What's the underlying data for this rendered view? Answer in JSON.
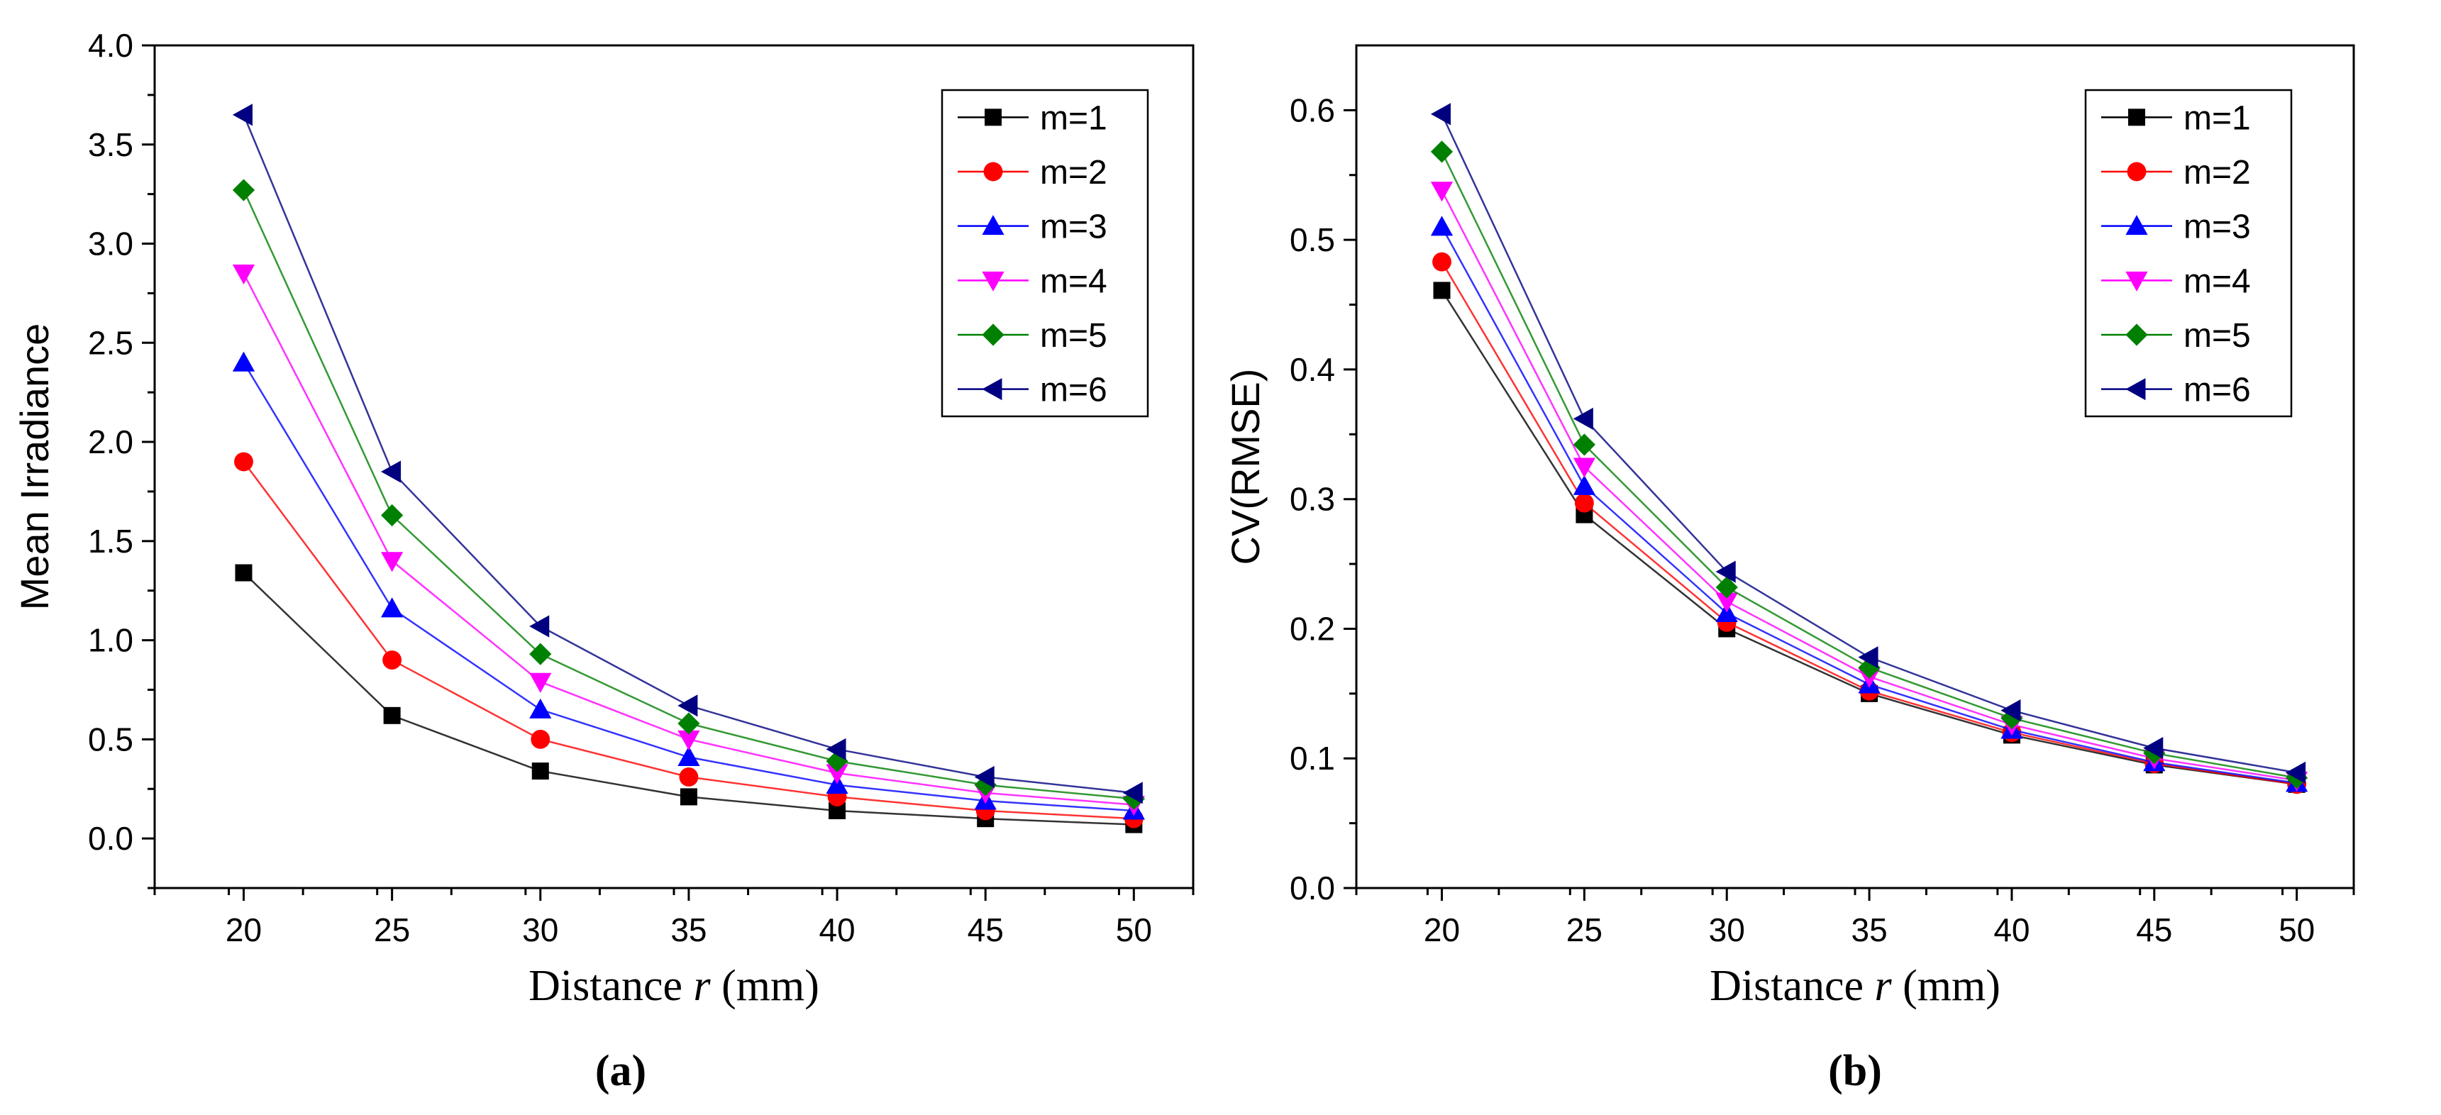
{
  "figure": {
    "panels": [
      {
        "label": "(a)"
      },
      {
        "label": "(b)"
      }
    ]
  },
  "chart_data": [
    {
      "type": "line",
      "panel": "(a)",
      "title": "",
      "xlabel_prefix": "Distance ",
      "xlabel_var": "r",
      "xlabel_suffix": " (mm)",
      "ylabel": "Mean Irradiance",
      "xlim": [
        17,
        52
      ],
      "ylim": [
        -0.25,
        4.0
      ],
      "xticks": [
        20,
        25,
        30,
        35,
        40,
        45,
        50
      ],
      "yticks": [
        0.0,
        0.5,
        1.0,
        1.5,
        2.0,
        2.5,
        3.0,
        3.5,
        4.0
      ],
      "ytick_labels": [
        "0.0",
        "0.5",
        "1.0",
        "1.5",
        "2.0",
        "2.5",
        "3.0",
        "3.5",
        "4.0"
      ],
      "legend_position": "top-right",
      "x": [
        20,
        25,
        30,
        35,
        40,
        45,
        50
      ],
      "series": [
        {
          "name": "m=1",
          "color": "#000000",
          "marker": "square",
          "values": [
            1.34,
            0.62,
            0.34,
            0.21,
            0.14,
            0.1,
            0.07
          ]
        },
        {
          "name": "m=2",
          "color": "#ff0000",
          "marker": "circle",
          "values": [
            1.9,
            0.9,
            0.5,
            0.31,
            0.21,
            0.14,
            0.1
          ]
        },
        {
          "name": "m=3",
          "color": "#0000ff",
          "marker": "triangle-up",
          "values": [
            2.4,
            1.16,
            0.65,
            0.41,
            0.27,
            0.19,
            0.14
          ]
        },
        {
          "name": "m=4",
          "color": "#ff00ff",
          "marker": "triangle-down",
          "values": [
            2.85,
            1.4,
            0.79,
            0.5,
            0.33,
            0.23,
            0.17
          ]
        },
        {
          "name": "m=5",
          "color": "#008000",
          "marker": "diamond",
          "values": [
            3.27,
            1.63,
            0.93,
            0.58,
            0.39,
            0.27,
            0.2
          ]
        },
        {
          "name": "m=6",
          "color": "#000080",
          "marker": "triangle-left",
          "values": [
            3.65,
            1.85,
            1.07,
            0.67,
            0.45,
            0.31,
            0.23
          ]
        }
      ]
    },
    {
      "type": "line",
      "panel": "(b)",
      "title": "",
      "xlabel_prefix": "Distance ",
      "xlabel_var": "r",
      "xlabel_suffix": " (mm)",
      "ylabel": "CV(RMSE)",
      "xlim": [
        17,
        52
      ],
      "ylim": [
        0.0,
        0.65
      ],
      "xticks": [
        20,
        25,
        30,
        35,
        40,
        45,
        50
      ],
      "yticks": [
        0.0,
        0.1,
        0.2,
        0.3,
        0.4,
        0.5,
        0.6
      ],
      "ytick_labels": [
        "0.0",
        "0.1",
        "0.2",
        "0.3",
        "0.4",
        "0.5",
        "0.6"
      ],
      "legend_position": "top-right",
      "x": [
        20,
        25,
        30,
        35,
        40,
        45,
        50
      ],
      "series": [
        {
          "name": "m=1",
          "color": "#000000",
          "marker": "square",
          "values": [
            0.461,
            0.288,
            0.2,
            0.15,
            0.118,
            0.095,
            0.08
          ]
        },
        {
          "name": "m=2",
          "color": "#ff0000",
          "marker": "circle",
          "values": [
            0.483,
            0.297,
            0.205,
            0.152,
            0.12,
            0.096,
            0.08
          ]
        },
        {
          "name": "m=3",
          "color": "#0000ff",
          "marker": "triangle-up",
          "values": [
            0.51,
            0.31,
            0.212,
            0.157,
            0.122,
            0.097,
            0.081
          ]
        },
        {
          "name": "m=4",
          "color": "#ff00ff",
          "marker": "triangle-down",
          "values": [
            0.538,
            0.325,
            0.221,
            0.163,
            0.126,
            0.1,
            0.083
          ]
        },
        {
          "name": "m=5",
          "color": "#008000",
          "marker": "diamond",
          "values": [
            0.568,
            0.342,
            0.232,
            0.17,
            0.131,
            0.104,
            0.085
          ]
        },
        {
          "name": "m=6",
          "color": "#000080",
          "marker": "triangle-left",
          "values": [
            0.597,
            0.362,
            0.244,
            0.178,
            0.137,
            0.108,
            0.089
          ]
        }
      ]
    }
  ]
}
